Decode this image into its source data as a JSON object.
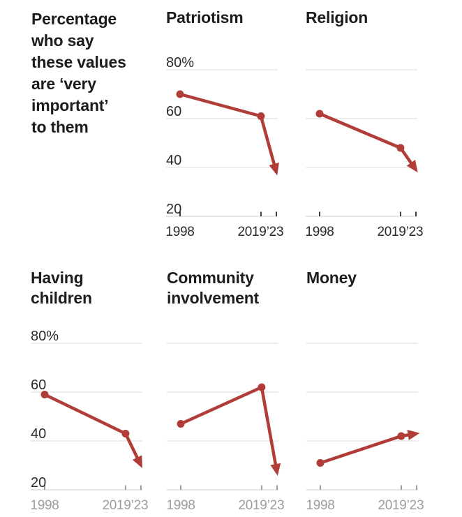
{
  "intro": {
    "text": "Percentage who say these values are ‘very important’ to them",
    "lines": [
      "Percentage",
      "who say",
      "these values",
      "are ‘very",
      "important’",
      "to them"
    ]
  },
  "axis": {
    "unit": "%",
    "ylim": [
      20,
      80
    ],
    "y_ticks": [
      80,
      60,
      40,
      20
    ],
    "y_tick_labels": [
      "80%",
      "60",
      "40",
      "20"
    ],
    "x_ticks": [
      1998,
      2019,
      2023
    ],
    "x_tick_labels": [
      "1998",
      "2019",
      "’23"
    ],
    "grid": "horizontal-only",
    "legend": "none"
  },
  "chart_data": [
    {
      "type": "line",
      "title": "Patriotism",
      "title_lines": [
        "Patriotism"
      ],
      "x": [
        1998,
        2019,
        2023
      ],
      "values": [
        70,
        61,
        38
      ],
      "end_marker": "arrow"
    },
    {
      "type": "line",
      "title": "Religion",
      "title_lines": [
        "Religion"
      ],
      "x": [
        1998,
        2019,
        2023
      ],
      "values": [
        62,
        48,
        39
      ],
      "end_marker": "arrow"
    },
    {
      "type": "line",
      "title": "Having children",
      "title_lines": [
        "Having",
        "children"
      ],
      "x": [
        1998,
        2019,
        2023
      ],
      "values": [
        59,
        43,
        30
      ],
      "end_marker": "arrow"
    },
    {
      "type": "line",
      "title": "Community involvement",
      "title_lines": [
        "Community",
        "involvement"
      ],
      "x": [
        1998,
        2019,
        2023
      ],
      "values": [
        47,
        62,
        27
      ],
      "end_marker": "arrow"
    },
    {
      "type": "line",
      "title": "Money",
      "title_lines": [
        "Money"
      ],
      "x": [
        1998,
        2019,
        2023
      ],
      "values": [
        31,
        42,
        43
      ],
      "end_marker": "arrow"
    }
  ],
  "colors": {
    "line": "#b03d37",
    "grid": "#e2e2e2",
    "axis_line": "#d8d8d8",
    "text_dark": "#1c1c1c",
    "tick_dark": "#3d3d3d",
    "text_muted": "#9c9c9c"
  }
}
